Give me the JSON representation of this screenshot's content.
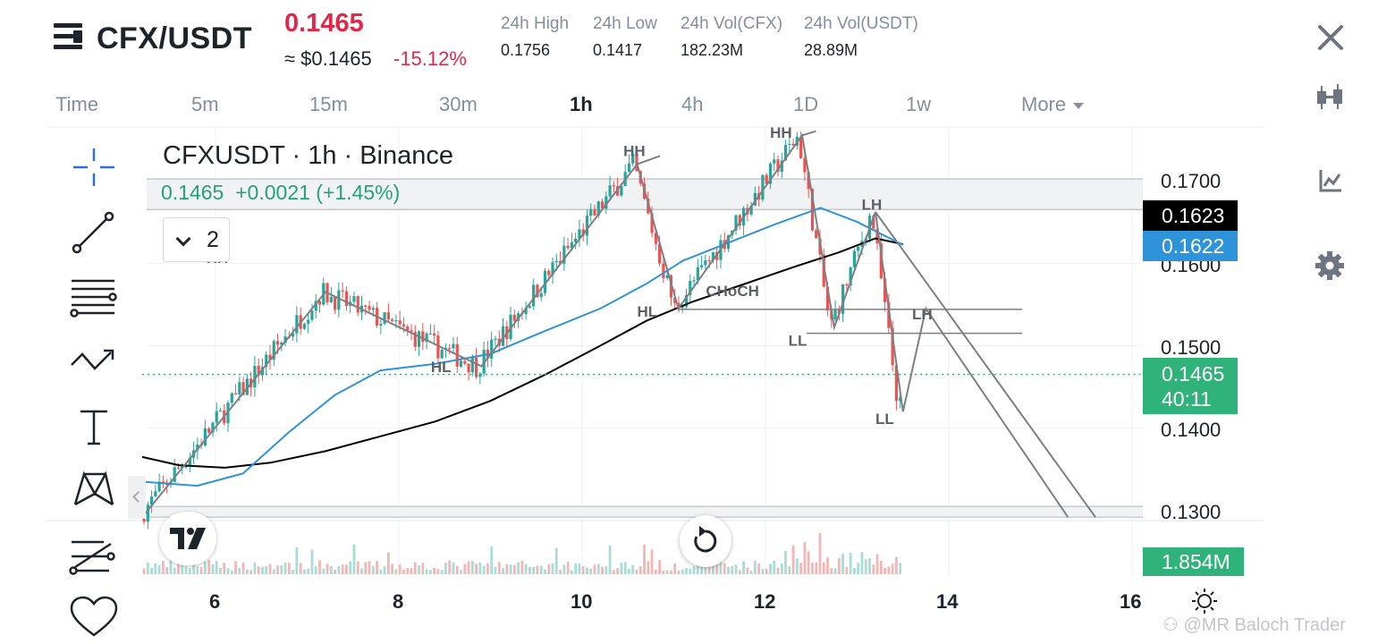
{
  "header": {
    "pair": "CFX/USDT",
    "last_price": "0.1465",
    "usd_price": "≈ $0.1465",
    "change_pct": "-15.12%",
    "stats": [
      {
        "label": "24h High",
        "value": "0.1756"
      },
      {
        "label": "24h Low",
        "value": "0.1417"
      },
      {
        "label": "24h Vol(CFX)",
        "value": "182.23M"
      },
      {
        "label": "24h Vol(USDT)",
        "value": "28.89M"
      }
    ]
  },
  "timeframes": [
    "Time",
    "5m",
    "15m",
    "30m",
    "1h",
    "4h",
    "1D",
    "1w",
    "More"
  ],
  "active_timeframe": "1h",
  "legend": {
    "title": "CFXUSDT · 1h · Binance",
    "values": "0.1465  +0.0021 (+1.45%)",
    "collapsed_count": "2"
  },
  "price_axis": {
    "labels": [
      "0.1700",
      "0.1600",
      "0.1500",
      "0.1400",
      "0.1300"
    ],
    "badges": {
      "black": "0.1623",
      "blue": "0.1622",
      "last": "0.1465",
      "countdown": "40:11",
      "volume": "1.854M"
    }
  },
  "time_axis": {
    "labels": [
      "6",
      "8",
      "10",
      "12",
      "14",
      "16"
    ]
  },
  "annotations": [
    "HH",
    "HH",
    "HH",
    "HL",
    "HL",
    "CHoCH",
    "LH",
    "LL",
    "LH",
    "LL"
  ],
  "icons": {
    "close": "close-icon",
    "candles": "candlestick-icon",
    "indicators": "indicator-icon",
    "settings": "gear-icon"
  },
  "colors": {
    "up": "#26a69a",
    "down": "#ef5350",
    "ma_fast": "#2e93d8",
    "ma_slow": "#000000",
    "last_badge": "#30b27b",
    "pattern": "#7c7f85"
  },
  "chart_data": {
    "type": "candlestick",
    "symbol": "CFXUSDT",
    "interval": "1h",
    "exchange": "Binance",
    "x_ticks": [
      6,
      8,
      10,
      12,
      14,
      16
    ],
    "ylim": [
      0.129,
      0.176
    ],
    "y_ticks": [
      0.17,
      0.16,
      0.15,
      0.14,
      0.13
    ],
    "last_price": 0.1465,
    "ma_fast_last": 0.1622,
    "ma_slow_last": 0.1623,
    "swing_path": [
      [
        5.2,
        0.1292
      ],
      [
        7.2,
        0.1565
      ],
      [
        8.9,
        0.1475
      ],
      [
        10.6,
        0.172
      ],
      [
        11.05,
        0.1545
      ],
      [
        12.4,
        0.1755
      ],
      [
        12.75,
        0.1522
      ],
      [
        13.2,
        0.1662
      ],
      [
        13.5,
        0.142
      ],
      [
        13.75,
        0.1545
      ],
      [
        15.3,
        0.1292
      ]
    ],
    "fast_ma": [
      [
        5.2,
        0.1335
      ],
      [
        5.8,
        0.133
      ],
      [
        6.3,
        0.1345
      ],
      [
        6.8,
        0.1395
      ],
      [
        7.3,
        0.144
      ],
      [
        7.8,
        0.147
      ],
      [
        8.4,
        0.1478
      ],
      [
        9.0,
        0.149
      ],
      [
        9.6,
        0.1518
      ],
      [
        10.2,
        0.1545
      ],
      [
        10.7,
        0.1575
      ],
      [
        11.1,
        0.1603
      ],
      [
        11.6,
        0.1625
      ],
      [
        12.1,
        0.1647
      ],
      [
        12.6,
        0.1667
      ],
      [
        13.0,
        0.165
      ],
      [
        13.5,
        0.1622
      ]
    ],
    "slow_ma": [
      [
        5.2,
        0.1365
      ],
      [
        5.6,
        0.1355
      ],
      [
        6.1,
        0.1352
      ],
      [
        6.6,
        0.1358
      ],
      [
        7.2,
        0.1372
      ],
      [
        7.8,
        0.139
      ],
      [
        8.4,
        0.1408
      ],
      [
        9.0,
        0.1433
      ],
      [
        9.6,
        0.1465
      ],
      [
        10.2,
        0.15
      ],
      [
        10.7,
        0.153
      ],
      [
        11.2,
        0.1553
      ],
      [
        11.7,
        0.1572
      ],
      [
        12.3,
        0.1595
      ],
      [
        12.8,
        0.1613
      ],
      [
        13.2,
        0.163
      ],
      [
        13.5,
        0.1623
      ]
    ],
    "levels": [
      {
        "from": 11.05,
        "to": 14.8,
        "y": 0.1544
      },
      {
        "from": 12.45,
        "to": 14.8,
        "y": 0.1515
      },
      {
        "from": 5.2,
        "to": 14.2,
        "y": 0.1465,
        "style": "dotted"
      }
    ],
    "zones": [
      {
        "y_top": 0.1702,
        "y_bottom": 0.1665
      },
      {
        "y_top": 0.1305,
        "y_bottom": 0.1292
      }
    ]
  }
}
